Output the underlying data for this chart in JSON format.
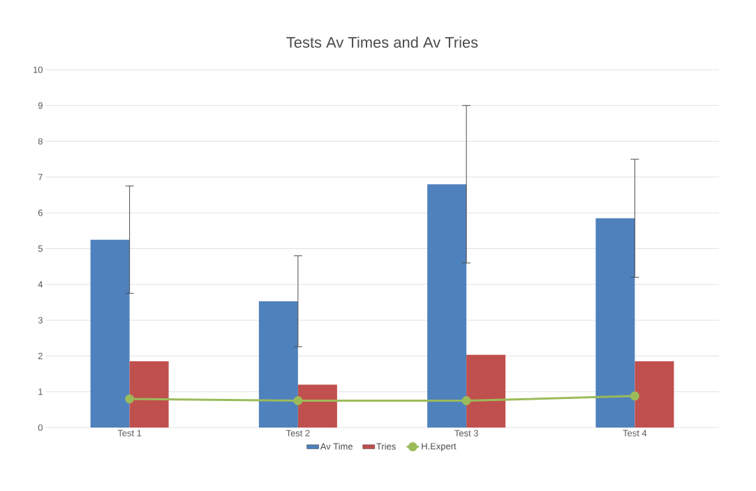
{
  "chart_data": {
    "type": "bar",
    "title": "Tests Av Times and Av Tries",
    "categories": [
      "Test 1",
      "Test 2",
      "Test 3",
      "Test 4"
    ],
    "series": [
      {
        "name": "Av Time",
        "color": "#4f81bd",
        "values": [
          5.25,
          3.53,
          6.8,
          5.85
        ],
        "errors": [
          1.5,
          1.27,
          2.2,
          1.65
        ]
      },
      {
        "name": "Tries",
        "color": "#c0504d",
        "values": [
          1.85,
          1.2,
          2.03,
          1.85
        ]
      },
      {
        "name": "H.Expert",
        "type": "line",
        "color": "#9bbb59",
        "values": [
          0.8,
          0.75,
          0.75,
          0.88
        ],
        "marker": "circle"
      }
    ],
    "ylim": [
      0,
      10
    ],
    "yticks": [
      0,
      1,
      2,
      3,
      4,
      5,
      6,
      7,
      8,
      9,
      10
    ],
    "grid": "y",
    "legend": "bottom"
  }
}
